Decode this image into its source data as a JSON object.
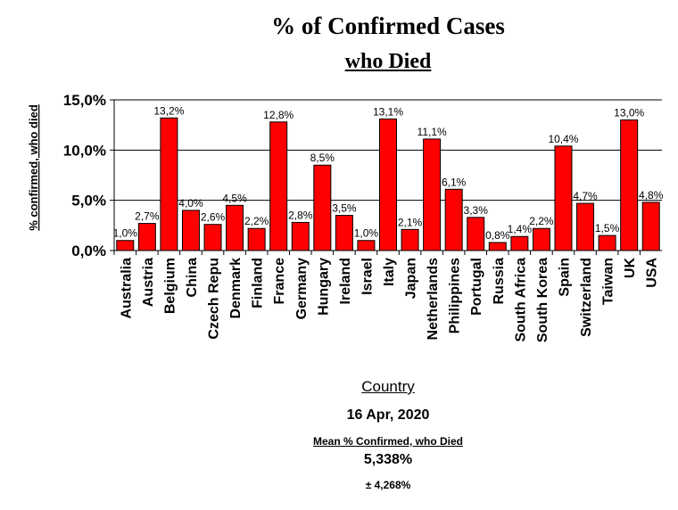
{
  "chart_data": {
    "type": "bar",
    "title": "% of Confirmed Cases",
    "subtitle": "who Died",
    "xlabel": "Country",
    "ylabel": "% confirmed, who died",
    "ylim": [
      0,
      15
    ],
    "yticks": [
      "0,0%",
      "5,0%",
      "10,0%",
      "15,0%"
    ],
    "ytick_values": [
      0,
      5,
      10,
      15
    ],
    "grid": true,
    "bar_color": "#ff0000",
    "categories": [
      "Australia",
      "Austria",
      "Belgium",
      "China",
      "Czech Repu",
      "Denmark",
      "Finland",
      "France",
      "Germany",
      "Hungary",
      "Ireland",
      "Israel",
      "Italy",
      "Japan",
      "Netherlands",
      "Philippines",
      "Portugal",
      "Russia",
      "South Africa",
      "South Korea",
      "Spain",
      "Switzerland",
      "Taiwan",
      "UK",
      "USA"
    ],
    "values": [
      1.0,
      2.7,
      13.2,
      4.0,
      2.6,
      4.5,
      2.2,
      12.8,
      2.8,
      8.5,
      3.5,
      1.0,
      13.1,
      2.1,
      11.1,
      6.1,
      3.3,
      0.8,
      1.4,
      2.2,
      10.4,
      4.7,
      1.5,
      13.0,
      4.8
    ],
    "data_labels": [
      "1,0%",
      "2,7%",
      "13,2%",
      "4,0%",
      "2,6%",
      "4,5%",
      "2,2%",
      "12,8%",
      "2,8%",
      "8,5%",
      "3,5%",
      "1,0%",
      "13,1%",
      "2,1%",
      "11,1%",
      "6,1%",
      "3,3%",
      "0,8%",
      "1,4%",
      "2,2%",
      "10,4%",
      "4,7%",
      "1,5%",
      "13,0%",
      "4,8%"
    ]
  },
  "footer": {
    "date": "16 Apr, 2020",
    "mean_label": "Mean % Confirmed, who Died",
    "mean_value": "5,338%",
    "mean_sd": "± 4,268%"
  }
}
